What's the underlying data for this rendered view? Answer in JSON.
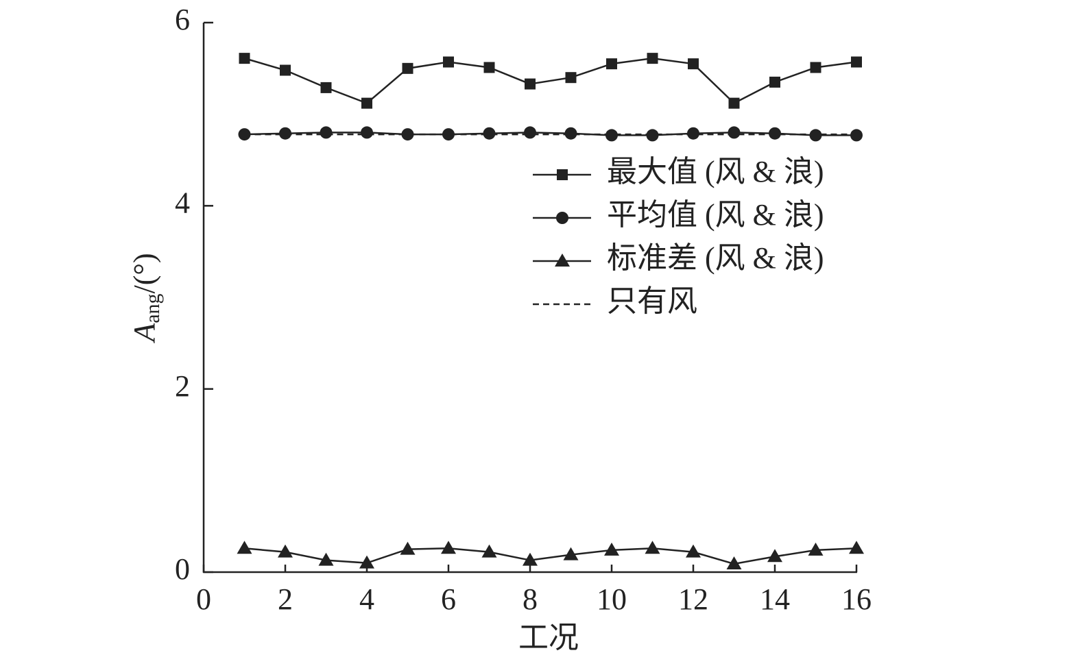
{
  "chart_data": {
    "type": "line",
    "x_label": "工况",
    "y_label": {
      "main": "A",
      "sub": "ang",
      "suffix": "/(°)"
    },
    "x": [
      1,
      2,
      3,
      4,
      5,
      6,
      7,
      8,
      9,
      10,
      11,
      12,
      13,
      14,
      15,
      16
    ],
    "xlim": [
      0,
      16
    ],
    "xticks": [
      0,
      2,
      4,
      6,
      8,
      10,
      12,
      14,
      16
    ],
    "ylim": [
      0,
      6
    ],
    "yticks": [
      0,
      2,
      4,
      6
    ],
    "series": [
      {
        "name": "最大值 (风 & 浪)",
        "color": "#222222",
        "marker": "square",
        "dash": false,
        "values": [
          5.61,
          5.48,
          5.29,
          5.12,
          5.5,
          5.57,
          5.51,
          5.33,
          5.4,
          5.55,
          5.61,
          5.55,
          5.12,
          5.35,
          5.51,
          5.57
        ]
      },
      {
        "name": "平均值 (风 & 浪)",
        "color": "#222222",
        "marker": "circle",
        "dash": false,
        "values": [
          4.78,
          4.79,
          4.8,
          4.8,
          4.78,
          4.78,
          4.79,
          4.8,
          4.79,
          4.77,
          4.77,
          4.79,
          4.8,
          4.79,
          4.77,
          4.77
        ]
      },
      {
        "name": "标准差 (风 & 浪)",
        "color": "#222222",
        "marker": "triangle",
        "dash": false,
        "values": [
          0.26,
          0.22,
          0.13,
          0.1,
          0.25,
          0.26,
          0.22,
          0.13,
          0.19,
          0.24,
          0.26,
          0.22,
          0.09,
          0.17,
          0.24,
          0.26
        ]
      },
      {
        "name": "只有风",
        "color": "#222222",
        "marker": "none",
        "dash": true,
        "values": [
          4.78,
          4.78,
          4.78,
          4.78,
          4.78,
          4.78,
          4.78,
          4.78,
          4.78,
          4.78,
          4.78,
          4.78,
          4.78,
          4.78,
          4.78,
          4.78
        ]
      }
    ]
  }
}
